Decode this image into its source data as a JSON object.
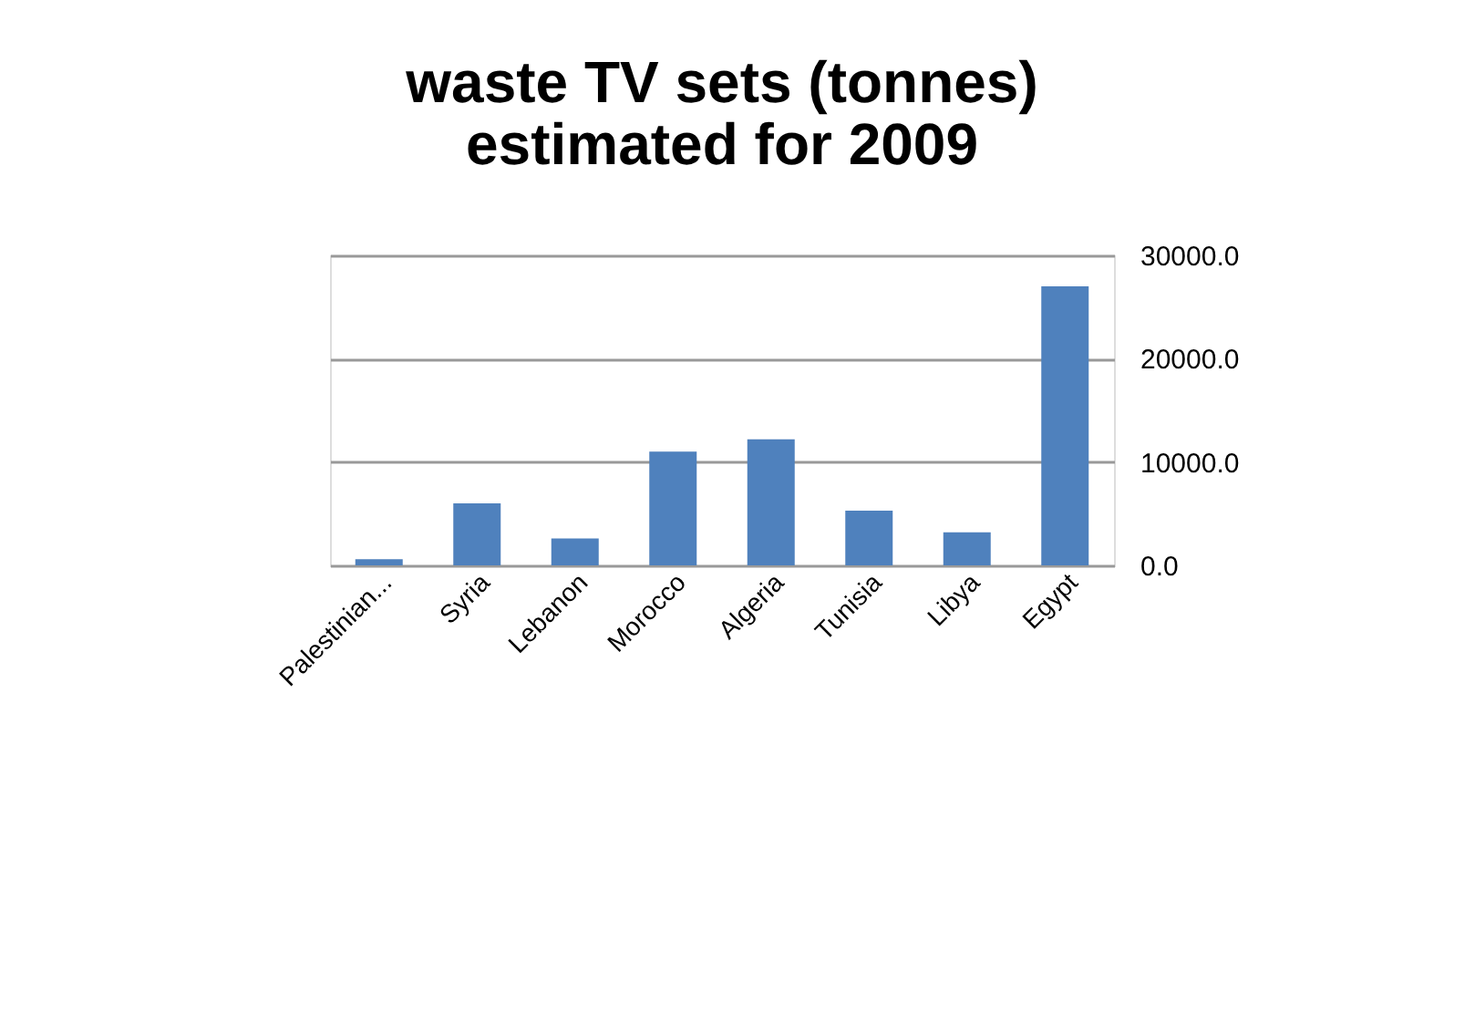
{
  "chart_data": {
    "type": "bar",
    "title": [
      "waste TV sets (tonnes)",
      "estimated for 2009"
    ],
    "categories": [
      "Palestinian...",
      "Syria",
      "Lebanon",
      "Morocco",
      "Algeria",
      "Tunisia",
      "Libya",
      "Egypt"
    ],
    "values": [
      600,
      6000,
      2600,
      11000,
      12200,
      5300,
      3200,
      27000
    ],
    "color": "#4f81bd",
    "ylim": [
      0,
      30000
    ],
    "yticks": [
      {
        "value": 0,
        "label": "0.0"
      },
      {
        "value": 10000,
        "label": "10000.0"
      },
      {
        "value": 20000,
        "label": "20000.0"
      },
      {
        "value": 30000,
        "label": "30000.0"
      }
    ],
    "grid": "y"
  }
}
